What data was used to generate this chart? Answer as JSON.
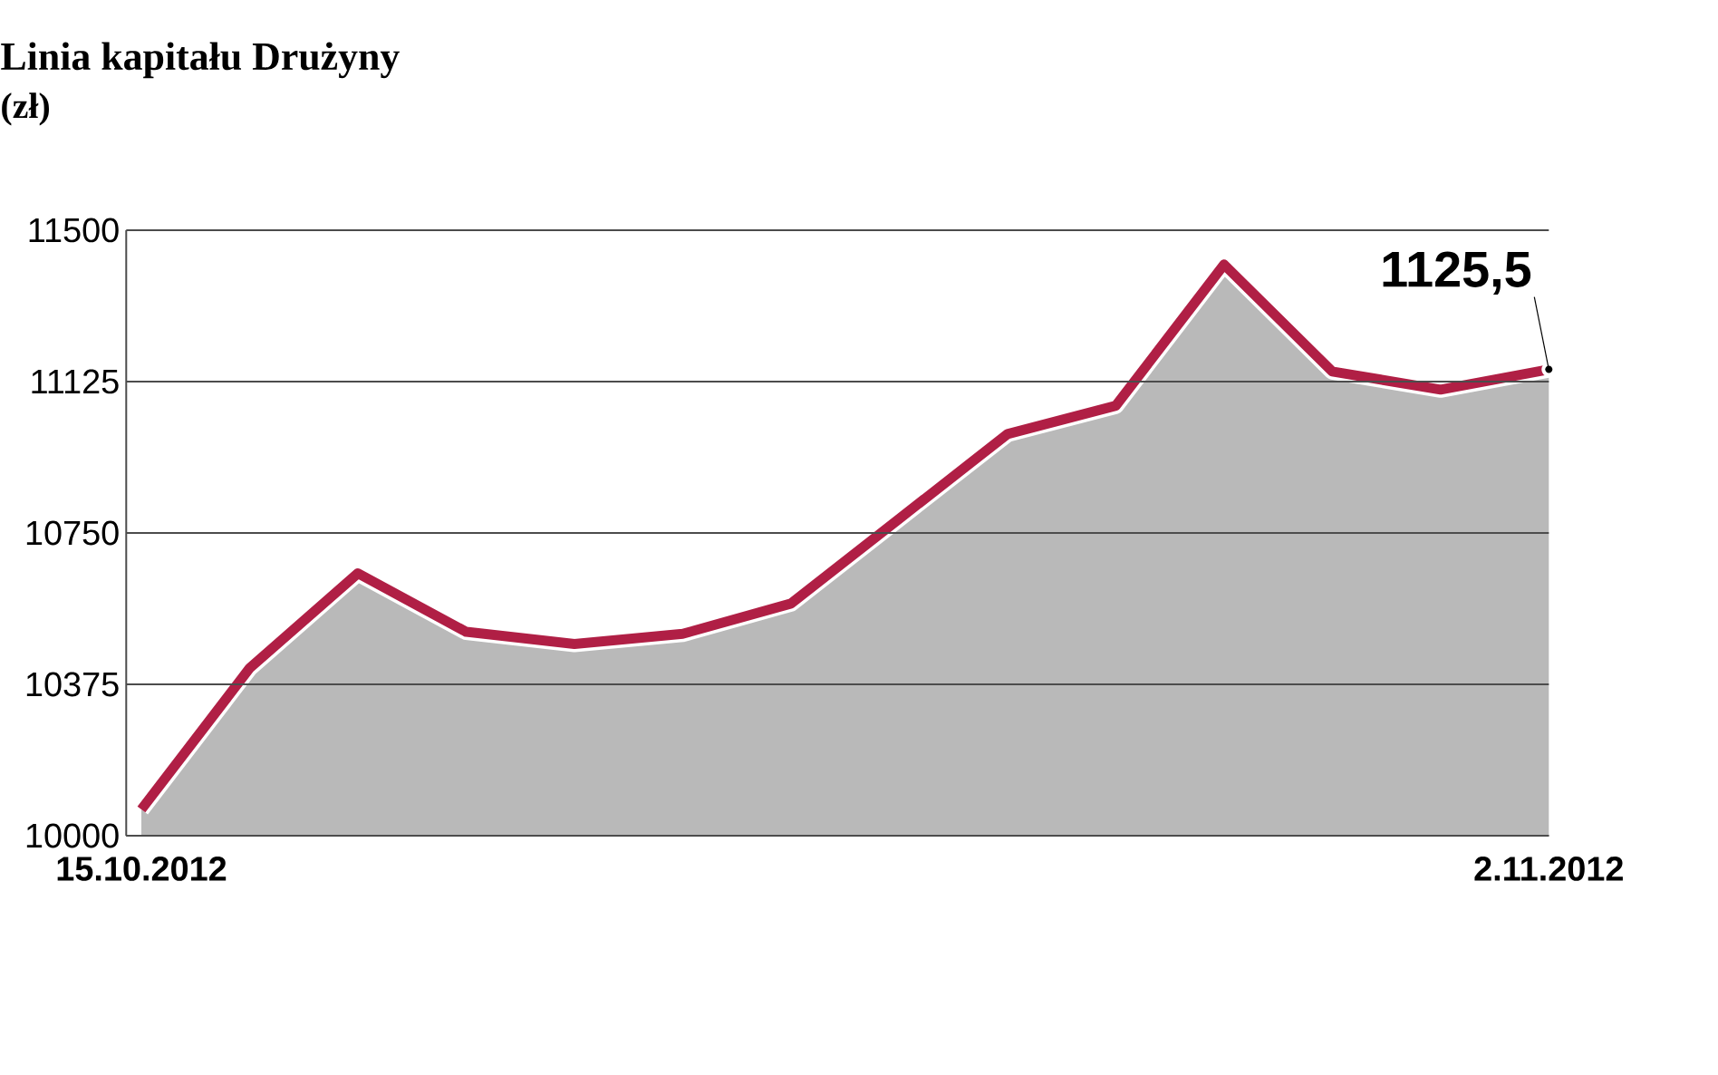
{
  "chart_data": {
    "type": "area",
    "title": "Linia kapitału Drużyny",
    "subtitle": "(zł)",
    "categories": [
      "15.10.2012",
      null,
      null,
      null,
      null,
      null,
      null,
      null,
      null,
      null,
      null,
      null,
      null,
      "2.11.2012"
    ],
    "series": [
      {
        "color": "#b01f45",
        "values": [
          10065,
          10415,
          10650,
          10505,
          10475,
          10500,
          10575,
          10785,
          10995,
          11065,
          11415,
          11150,
          11105,
          11155
        ]
      }
    ],
    "ylim": [
      10000,
      11500
    ],
    "yticks": [
      10000,
      10375,
      10750,
      11125,
      11500
    ],
    "grid": "y",
    "annotations": [
      {
        "text": "1125,5",
        "y": 11155
      }
    ]
  }
}
